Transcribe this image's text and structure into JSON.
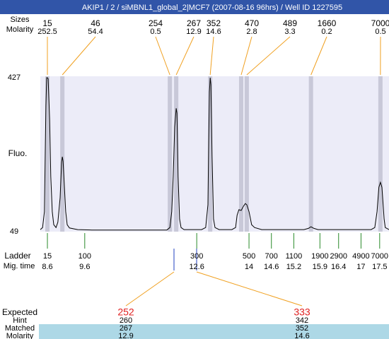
{
  "title": "AKIP1 / 2 / siMBNL1_global_2|MCF7 (2007-08-16 96hrs) / Well ID 1227595",
  "peaks": {
    "size_label": "Sizes",
    "molarity_label": "Molarity",
    "sizes": [
      15,
      46,
      254,
      267,
      352,
      470,
      489,
      1660,
      7000
    ],
    "molarity": [
      252.5,
      54.4,
      0.5,
      12.9,
      14.6,
      2.8,
      3.3,
      0.2,
      0.5
    ]
  },
  "chart_data": {
    "type": "line",
    "y_label": "Fluo.",
    "xlim": [
      8.41,
      17.75
    ],
    "ylim": [
      49,
      427
    ],
    "yticks": [
      49,
      427
    ],
    "color": "#000000",
    "peak_times": [
      8.6,
      9.0,
      11.88,
      12.05,
      12.96,
      13.79,
      13.94,
      15.66,
      17.52
    ],
    "x": [
      8.41,
      8.47,
      8.52,
      8.56,
      8.58,
      8.6,
      8.62,
      8.66,
      8.69,
      8.73,
      8.77,
      8.83,
      8.88,
      8.94,
      8.98,
      9.0,
      9.02,
      9.05,
      9.09,
      9.13,
      9.19,
      9.41,
      9.79,
      11.12,
      11.8,
      11.88,
      11.93,
      11.97,
      12.01,
      12.05,
      12.07,
      12.1,
      12.14,
      12.18,
      12.26,
      12.73,
      12.84,
      12.9,
      12.92,
      12.94,
      12.96,
      12.98,
      13.01,
      13.05,
      13.09,
      13.2,
      13.54,
      13.64,
      13.68,
      13.73,
      13.79,
      13.85,
      13.9,
      13.94,
      14.0,
      14.07,
      14.15,
      14.34,
      15.47,
      15.59,
      15.66,
      15.74,
      15.85,
      17.27,
      17.37,
      17.43,
      17.48,
      17.52,
      17.56,
      17.62,
      17.65,
      17.75
    ],
    "values": [
      54,
      59,
      98,
      358,
      427,
      427,
      424,
      323,
      184,
      98,
      66,
      59,
      72,
      132,
      219,
      233,
      222,
      167,
      98,
      66,
      58,
      54,
      53,
      53,
      53,
      59,
      98,
      184,
      306,
      352,
      340,
      184,
      80,
      59,
      54,
      54,
      59,
      115,
      271,
      392,
      427,
      410,
      236,
      80,
      59,
      54,
      54,
      59,
      89,
      103,
      101,
      111,
      118,
      115,
      98,
      66,
      59,
      54,
      54,
      57,
      61,
      57,
      54,
      54,
      59,
      98,
      158,
      170,
      158,
      80,
      59,
      54
    ]
  },
  "ladder": {
    "label": "Ladder",
    "time_label": "Mig. time",
    "sizes": [
      15,
      100,
      300,
      500,
      700,
      1100,
      1900,
      2900,
      4900,
      7000
    ],
    "times": [
      8.6,
      9.6,
      12.6,
      14,
      14.6,
      15.2,
      15.9,
      16.4,
      17,
      17.5
    ]
  },
  "expected": {
    "label": "Expected",
    "hint_label": "Hint",
    "matched_label": "Matched",
    "molarity_label": "Molarity",
    "columns": [
      {
        "expected": 252,
        "hint": 260,
        "matched": 267,
        "molarity": 12.9
      },
      {
        "expected": 333,
        "hint": 342,
        "matched": 352,
        "molarity": 14.6
      }
    ]
  }
}
